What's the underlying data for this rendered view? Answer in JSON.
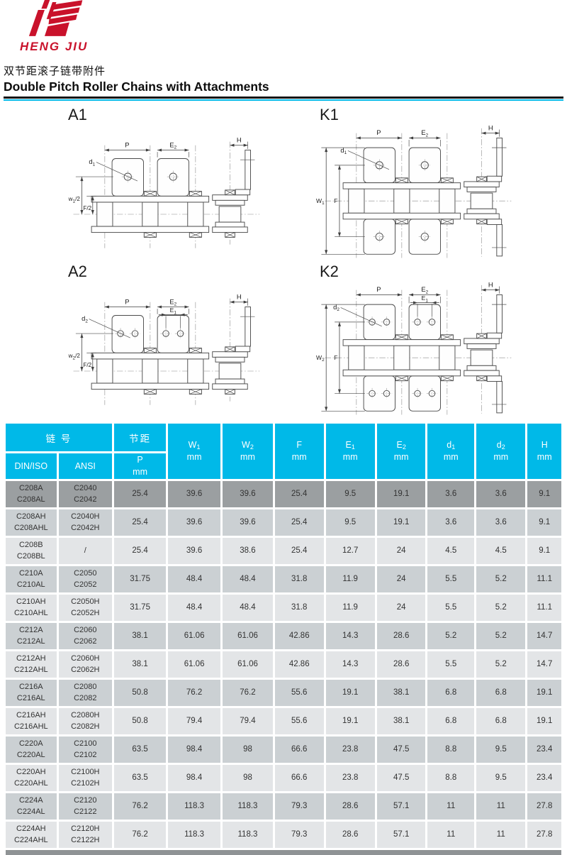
{
  "brand": {
    "name": "HENG JIU",
    "color": "#c9122b"
  },
  "page": {
    "title_zh": "双节距滚子链带附件",
    "title_en": "Double Pitch Roller Chains with Attachments",
    "accent_color": "#00b9e8"
  },
  "diagrams": [
    {
      "id": "a1",
      "label": "A1",
      "type": "A",
      "holes": 1,
      "dims": {
        "p": {
          "base": "P"
        },
        "e2": {
          "base": "E",
          "sub": "2"
        },
        "h": {
          "base": "H"
        },
        "d": {
          "base": "d",
          "sub": "1"
        },
        "w": {
          "base": "w",
          "sub": "1",
          "suffix": "/2"
        },
        "f": {
          "base": "F",
          "suffix": "/2"
        }
      }
    },
    {
      "id": "k1",
      "label": "K1",
      "type": "K",
      "holes": 1,
      "dims": {
        "p": {
          "base": "P"
        },
        "e2": {
          "base": "E",
          "sub": "2"
        },
        "h": {
          "base": "H"
        },
        "d": {
          "base": "d",
          "sub": "1"
        },
        "w": {
          "base": "W",
          "sub": "1"
        },
        "f": {
          "base": "F"
        }
      }
    },
    {
      "id": "a2",
      "label": "A2",
      "type": "A",
      "holes": 2,
      "dims": {
        "p": {
          "base": "P"
        },
        "e2": {
          "base": "E",
          "sub": "2"
        },
        "e1": {
          "base": "E",
          "sub": "1"
        },
        "h": {
          "base": "H"
        },
        "d": {
          "base": "d",
          "sub": "2"
        },
        "w": {
          "base": "w",
          "sub": "2",
          "suffix": "/2"
        },
        "f": {
          "base": "F",
          "suffix": "/2"
        }
      }
    },
    {
      "id": "k2",
      "label": "K2",
      "type": "K",
      "holes": 2,
      "dims": {
        "p": {
          "base": "P"
        },
        "e2": {
          "base": "E",
          "sub": "2"
        },
        "e1": {
          "base": "E",
          "sub": "1"
        },
        "h": {
          "base": "H"
        },
        "d": {
          "base": "d",
          "sub": "2"
        },
        "w": {
          "base": "W",
          "sub": "2"
        },
        "f": {
          "base": "F"
        }
      }
    }
  ],
  "table": {
    "header": {
      "chain_no": "链 号",
      "pitch": "节距",
      "din_iso": "DIN/ISO",
      "ansi": "ANSI",
      "p_base": "P",
      "unit": "mm",
      "value_cols": [
        {
          "base": "W",
          "sub": "1"
        },
        {
          "base": "W",
          "sub": "2"
        },
        {
          "base": "F",
          "sub": ""
        },
        {
          "base": "E",
          "sub": "1"
        },
        {
          "base": "E",
          "sub": "2"
        },
        {
          "base": "d",
          "sub": "1"
        },
        {
          "base": "d",
          "sub": "2"
        },
        {
          "base": "H",
          "sub": ""
        }
      ]
    },
    "row_colors": {
      "dark": "#9b9fa1",
      "medium": "#cbd0d3",
      "light": "#e3e5e7",
      "cut": "#8f9395"
    },
    "rows": [
      {
        "din": [
          "C208A",
          "C208AL"
        ],
        "ansi": [
          "C2040",
          "C2042"
        ],
        "shade": "dark",
        "values": [
          "25.4",
          "39.6",
          "39.6",
          "25.4",
          "9.5",
          "19.1",
          "3.6",
          "3.6",
          "9.1"
        ]
      },
      {
        "din": [
          "C208AH",
          "C208AHL"
        ],
        "ansi": [
          "C2040H",
          "C2042H"
        ],
        "shade": "medium",
        "values": [
          "25.4",
          "39.6",
          "39.6",
          "25.4",
          "9.5",
          "19.1",
          "3.6",
          "3.6",
          "9.1"
        ]
      },
      {
        "din": [
          "C208B",
          "C208BL"
        ],
        "ansi": [
          "/"
        ],
        "shade": "light",
        "values": [
          "25.4",
          "39.6",
          "38.6",
          "25.4",
          "12.7",
          "24",
          "4.5",
          "4.5",
          "9.1"
        ]
      },
      {
        "din": [
          "C210A",
          "C210AL"
        ],
        "ansi": [
          "C2050",
          "C2052"
        ],
        "shade": "medium",
        "values": [
          "31.75",
          "48.4",
          "48.4",
          "31.8",
          "11.9",
          "24",
          "5.5",
          "5.2",
          "11.1"
        ]
      },
      {
        "din": [
          "C210AH",
          "C210AHL"
        ],
        "ansi": [
          "C2050H",
          "C2052H"
        ],
        "shade": "light",
        "values": [
          "31.75",
          "48.4",
          "48.4",
          "31.8",
          "11.9",
          "24",
          "5.5",
          "5.2",
          "11.1"
        ]
      },
      {
        "din": [
          "C212A",
          "C212AL"
        ],
        "ansi": [
          "C2060",
          "C2062"
        ],
        "shade": "medium",
        "values": [
          "38.1",
          "61.06",
          "61.06",
          "42.86",
          "14.3",
          "28.6",
          "5.2",
          "5.2",
          "14.7"
        ]
      },
      {
        "din": [
          "C212AH",
          "C212AHL"
        ],
        "ansi": [
          "C2060H",
          "C2062H"
        ],
        "shade": "light",
        "values": [
          "38.1",
          "61.06",
          "61.06",
          "42.86",
          "14.3",
          "28.6",
          "5.5",
          "5.2",
          "14.7"
        ]
      },
      {
        "din": [
          "C216A",
          "C216AL"
        ],
        "ansi": [
          "C2080",
          "C2082"
        ],
        "shade": "medium",
        "values": [
          "50.8",
          "76.2",
          "76.2",
          "55.6",
          "19.1",
          "38.1",
          "6.8",
          "6.8",
          "19.1"
        ]
      },
      {
        "din": [
          "C216AH",
          "C216AHL"
        ],
        "ansi": [
          "C2080H",
          "C2082H"
        ],
        "shade": "light",
        "values": [
          "50.8",
          "79.4",
          "79.4",
          "55.6",
          "19.1",
          "38.1",
          "6.8",
          "6.8",
          "19.1"
        ]
      },
      {
        "din": [
          "C220A",
          "C220AL"
        ],
        "ansi": [
          "C2100",
          "C2102"
        ],
        "shade": "medium",
        "values": [
          "63.5",
          "98.4",
          "98",
          "66.6",
          "23.8",
          "47.5",
          "8.8",
          "9.5",
          "23.4"
        ]
      },
      {
        "din": [
          "C220AH",
          "C220AHL"
        ],
        "ansi": [
          "C2100H",
          "C2102H"
        ],
        "shade": "light",
        "values": [
          "63.5",
          "98.4",
          "98",
          "66.6",
          "23.8",
          "47.5",
          "8.8",
          "9.5",
          "23.4"
        ]
      },
      {
        "din": [
          "C224A",
          "C224AL"
        ],
        "ansi": [
          "C2120",
          "C2122"
        ],
        "shade": "medium",
        "values": [
          "76.2",
          "118.3",
          "118.3",
          "79.3",
          "28.6",
          "57.1",
          "11",
          "11",
          "27.8"
        ]
      },
      {
        "din": [
          "C224AH",
          "C224AHL"
        ],
        "ansi": [
          "C2120H",
          "C2122H"
        ],
        "shade": "light",
        "values": [
          "76.2",
          "118.3",
          "118.3",
          "79.3",
          "28.6",
          "57.1",
          "11",
          "11",
          "27.8"
        ]
      }
    ]
  }
}
